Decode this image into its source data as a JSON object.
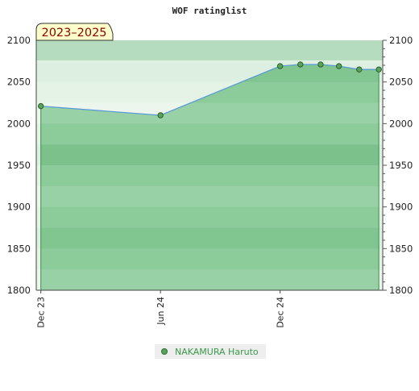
{
  "chart_data": {
    "type": "area",
    "title": "WOF ratinglist",
    "period_label": "2023–2025",
    "xlabel": "",
    "ylabel": "",
    "x_ticks": [
      "Dec 23",
      "Jun 24",
      "Dec 24"
    ],
    "x_tick_dates": [
      "2023-12-01",
      "2024-06-01",
      "2024-12-01"
    ],
    "x_range": [
      "2023-11-24",
      "2025-05-07"
    ],
    "ylim": [
      1800,
      2100
    ],
    "y_ticks": [
      1800,
      1850,
      1900,
      1950,
      2000,
      2050,
      2100
    ],
    "grid": "horizontal colored bands",
    "legend_position": "bottom-center",
    "series": [
      {
        "name": "NAKAMURA Haruto",
        "color": "#5b9bd5",
        "marker_color": "#5aa35a",
        "x": [
          "2023-12-01",
          "2024-06-01",
          "2024-12-01",
          "2025-01-01",
          "2025-02-01",
          "2025-03-01",
          "2025-04-01",
          "2025-05-01"
        ],
        "values": [
          2021,
          2010,
          2069,
          2071,
          2071,
          2069,
          2065,
          2065
        ]
      }
    ],
    "colors": {
      "plot_bg": "#f4faf4",
      "fill": "#8fcb9b",
      "band_dark": "#7ec392",
      "band_light": "#c8e6cf",
      "period_bg": "#ffffcc",
      "legend_bg": "#eeeeee"
    }
  }
}
